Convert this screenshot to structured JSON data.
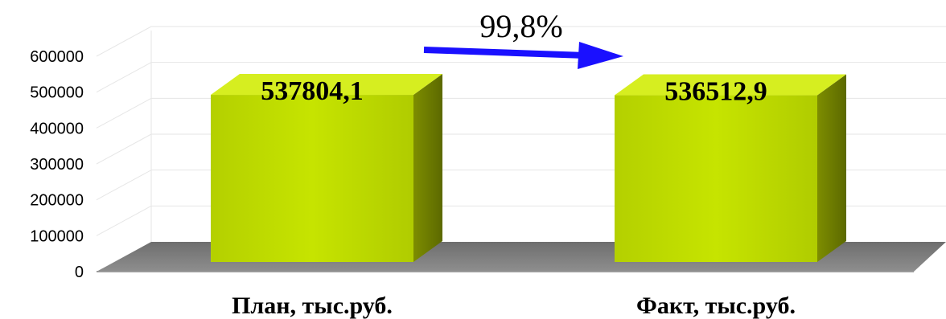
{
  "chart_data": {
    "type": "bar",
    "categories": [
      "План, тыс.руб.",
      "Факт, тыс.руб."
    ],
    "values": [
      537804.1,
      536512.9
    ],
    "data_labels": [
      "537804,1",
      "536512,9"
    ],
    "yticks": [
      "0",
      "100000",
      "200000",
      "300000",
      "400000",
      "500000",
      "600000"
    ],
    "ylim": [
      0,
      600000
    ],
    "grid": true,
    "annotation": {
      "text": "99,8%"
    },
    "colors": {
      "bar_front": "#c2e000",
      "bar_side": "#6e7d00",
      "bar_top": "#d6ee20",
      "floor": "#808080",
      "arrow": "#1a10ff",
      "grid": "#e6e6e6"
    }
  }
}
